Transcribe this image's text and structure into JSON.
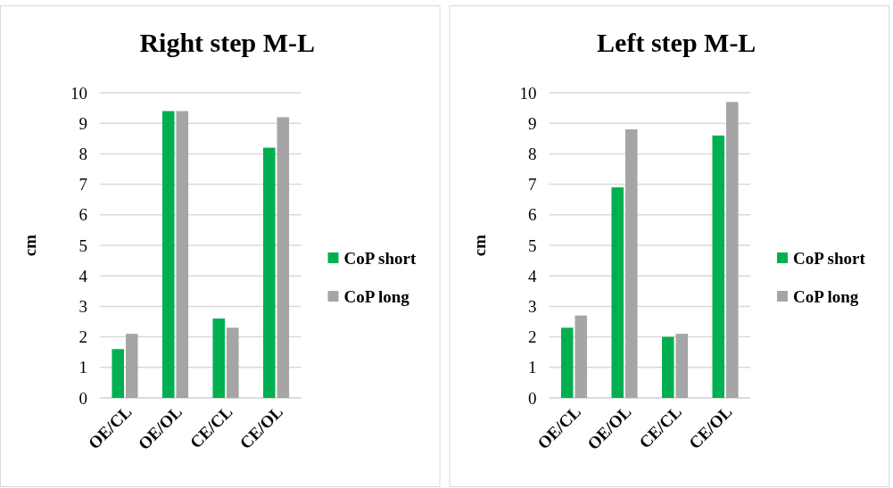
{
  "chart_data": [
    {
      "type": "bar",
      "title": "Right step M-L",
      "ylabel": "cm",
      "categories": [
        "OE/CL",
        "OE/OL",
        "CE/CL",
        "CE/OL"
      ],
      "series": [
        {
          "name": "CoP short",
          "color": "#00b050",
          "values": [
            1.6,
            9.4,
            2.6,
            8.2
          ]
        },
        {
          "name": "CoP long",
          "color": "#a5a5a5",
          "values": [
            2.1,
            9.4,
            2.3,
            9.2
          ]
        }
      ],
      "ylim": [
        0,
        10
      ],
      "yticks": [
        0,
        1,
        2,
        3,
        4,
        5,
        6,
        7,
        8,
        9,
        10
      ],
      "grid": "y",
      "legend": "right"
    },
    {
      "type": "bar",
      "title": "Left step M-L",
      "ylabel": "cm",
      "categories": [
        "OE/CL",
        "OE/OL",
        "CE/CL",
        "CE/OL"
      ],
      "series": [
        {
          "name": "CoP short",
          "color": "#00b050",
          "values": [
            2.3,
            6.9,
            2.0,
            8.6
          ]
        },
        {
          "name": "CoP long",
          "color": "#a5a5a5",
          "values": [
            2.7,
            8.8,
            2.1,
            9.7
          ]
        }
      ],
      "ylim": [
        0,
        10
      ],
      "yticks": [
        0,
        1,
        2,
        3,
        4,
        5,
        6,
        7,
        8,
        9,
        10
      ],
      "grid": "y",
      "legend": "right"
    }
  ]
}
